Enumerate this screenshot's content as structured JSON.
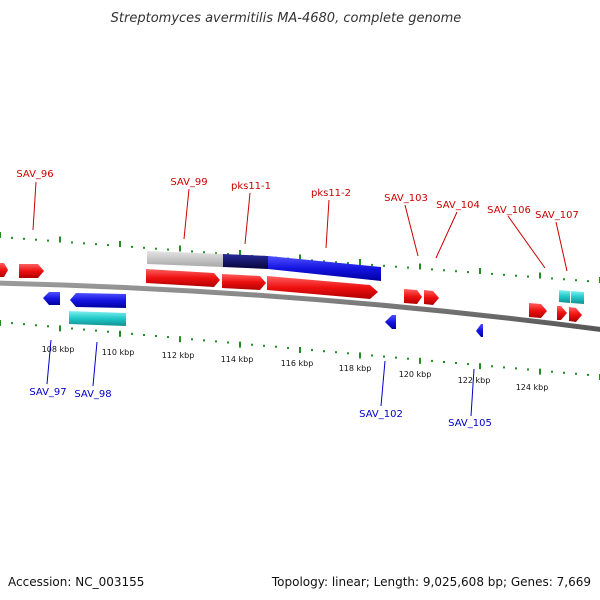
{
  "title": "Streptomyces avermitilis MA-4680, complete genome",
  "footer": {
    "accession": "Accession: NC_003155",
    "topology": "Topology: linear; Length: 9,025,608 bp; Genes: 7,669"
  },
  "colors": {
    "forward_strand": "#ff2020",
    "reverse_strand": "#1818e8",
    "rna": "#20c8c8",
    "forward_label": "#cc0000",
    "reverse_label": "#0000cc",
    "scale_dots": "#228b22",
    "backbone": "#707070",
    "cluster_light": "#c8c8c8",
    "cluster_dark": "#0a0a6e",
    "cluster_blue": "#1818e8"
  },
  "scale": {
    "unit": "kbp",
    "ticks": [
      "108 kbp",
      "110 kbp",
      "112 kbp",
      "114 kbp",
      "116 kbp",
      "118 kbp",
      "120 kbp",
      "122 kbp",
      "124 kbp"
    ]
  },
  "forward_labels": [
    "SAV_96",
    "SAV_99",
    "pks11-1",
    "pks11-2",
    "SAV_103",
    "SAV_104",
    "SAV_106",
    "SAV_107"
  ],
  "reverse_labels": [
    "SAV_97",
    "SAV_98",
    "SAV_102",
    "SAV_105"
  ]
}
